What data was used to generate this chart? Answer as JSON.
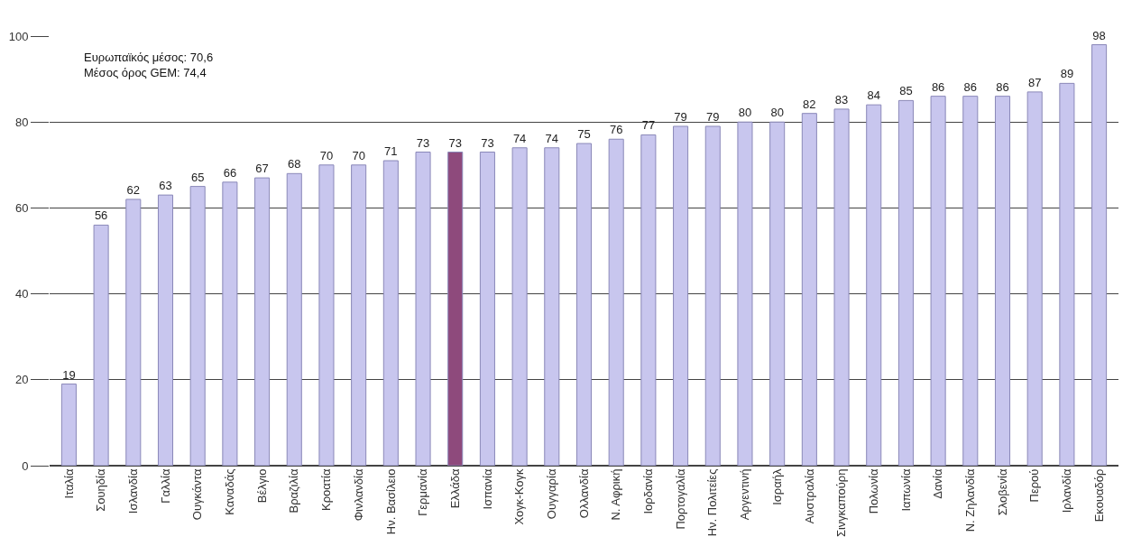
{
  "chart_data": {
    "type": "bar",
    "categories": [
      "Ιταλία",
      "Σουηδία",
      "Ισλανδία",
      "Γαλλία",
      "Ουγκάντα",
      "Καναδάς",
      "Βέλγιο",
      "Βραζιλία",
      "Κροατία",
      "Φινλανδία",
      "Ην. Βασίλειο",
      "Γερμανία",
      "Ελλάδα",
      "Ισπανία",
      "Χογκ-Κογκ",
      "Ουγγαρία",
      "Ολλανδία",
      "Ν. Αφρική",
      "Ιορδανία",
      "Πορτογαλία",
      "Ην. Πολιτείες",
      "Αργεντινή",
      "Ισραήλ",
      "Αυστραλία",
      "Σινγκαπούρη",
      "Πολωνία",
      "Ιαπωνία",
      "Δανία",
      "Ν. Ζηλανδία",
      "Σλοβενία",
      "Περού",
      "Ιρλανδία",
      "Εκουαδόρ"
    ],
    "values": [
      19,
      56,
      62,
      63,
      65,
      66,
      67,
      68,
      70,
      70,
      71,
      73,
      73,
      73,
      74,
      74,
      75,
      76,
      77,
      79,
      79,
      80,
      80,
      82,
      83,
      84,
      85,
      86,
      86,
      86,
      87,
      89,
      98
    ],
    "colors": [
      "#c8c6ee",
      "#c8c6ee",
      "#c8c6ee",
      "#c8c6ee",
      "#c8c6ee",
      "#c8c6ee",
      "#c8c6ee",
      "#c8c6ee",
      "#c8c6ee",
      "#c8c6ee",
      "#c8c6ee",
      "#c8c6ee",
      "#8e4a7c",
      "#c8c6ee",
      "#c8c6ee",
      "#c8c6ee",
      "#c8c6ee",
      "#c8c6ee",
      "#c8c6ee",
      "#c8c6ee",
      "#c8c6ee",
      "#c8c6ee",
      "#c8c6ee",
      "#c8c6ee",
      "#c8c6ee",
      "#c8c6ee",
      "#c8c6ee",
      "#c8c6ee",
      "#c8c6ee",
      "#c8c6ee",
      "#c8c6ee",
      "#c8c6ee",
      "#c8c6ee"
    ],
    "ylim": [
      0,
      100
    ],
    "yticks": [
      0,
      20,
      40,
      60,
      80,
      100
    ],
    "grid": "y",
    "data_labels": true,
    "annotations": [
      "Ευρωπαϊκός μέσος: 70,6\nΜέσος όρος GEM: 74,4"
    ]
  }
}
